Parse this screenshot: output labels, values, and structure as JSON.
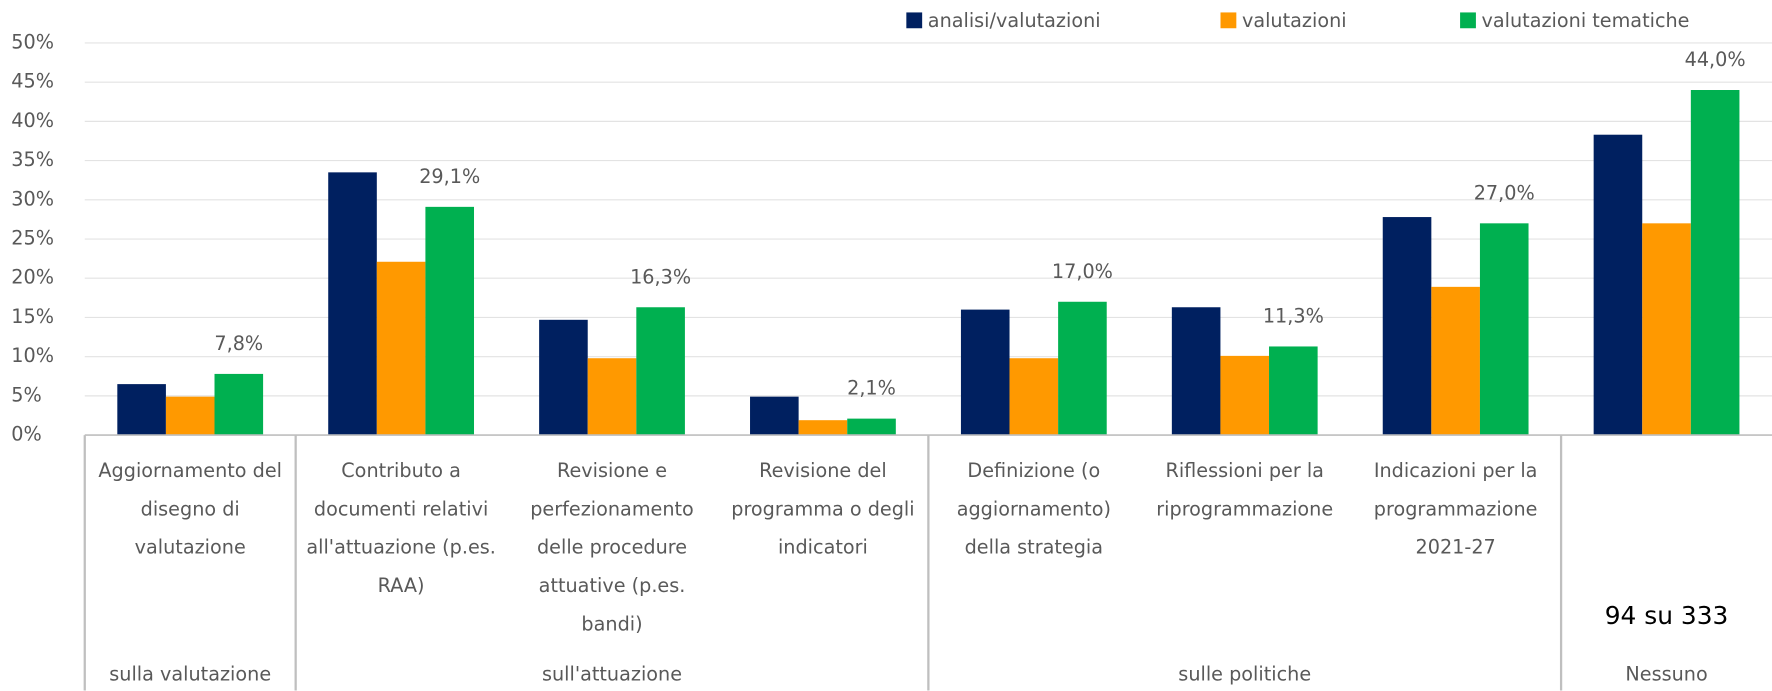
{
  "chart_data": {
    "type": "bar",
    "categories": [
      "Aggiornamento del disegno di valutazione",
      "Contributo a documenti relativi all'attuazione (p.es. RAA)",
      "Revisione e perfezionamento delle procedure attuative (p.es. bandi)",
      "Revisione del programma o degli indicatori",
      "Definizione (o aggiornamento) della strategia",
      "Riflessioni per la riprogrammazione",
      "Indicazioni per la programmazione 2021-27",
      null
    ],
    "groups": [
      {
        "label": "sulla valutazione",
        "span": 1
      },
      {
        "label": "sull'attuazione",
        "span": 3
      },
      {
        "label": "sulle politiche",
        "span": 3
      },
      {
        "label": "Nessuno",
        "span": 1
      }
    ],
    "annotation": "94 su 333",
    "series": [
      {
        "name": "analisi/valutazioni",
        "color": "#002060",
        "values": [
          6.5,
          33.5,
          14.7,
          4.9,
          16.0,
          16.3,
          27.8,
          38.3
        ]
      },
      {
        "name": "valutazioni",
        "color": "#ff9900",
        "values": [
          4.9,
          22.1,
          9.8,
          1.9,
          9.8,
          10.1,
          18.9,
          27.0
        ]
      },
      {
        "name": "valutazioni tematiche",
        "color": "#00b050",
        "values": [
          7.8,
          29.1,
          16.3,
          2.1,
          17.0,
          11.3,
          27.0,
          44.0
        ],
        "value_labels": [
          "7,8%",
          "29,1%",
          "16,3%",
          "2,1%",
          "17,0%",
          "11,3%",
          "27,0%",
          "44,0%"
        ]
      }
    ],
    "ylim": [
      0,
      50
    ],
    "yticks": [
      {
        "value": 0,
        "label": "0%"
      },
      {
        "value": 5,
        "label": "5%"
      },
      {
        "value": 10,
        "label": "10%"
      },
      {
        "value": 15,
        "label": "15%"
      },
      {
        "value": 20,
        "label": "20%"
      },
      {
        "value": 25,
        "label": "25%"
      },
      {
        "value": 30,
        "label": "30%"
      },
      {
        "value": 35,
        "label": "35%"
      },
      {
        "value": 40,
        "label": "40%"
      },
      {
        "value": 45,
        "label": "45%"
      },
      {
        "value": 50,
        "label": "50%"
      }
    ],
    "grid": true,
    "legend": "top-right"
  }
}
